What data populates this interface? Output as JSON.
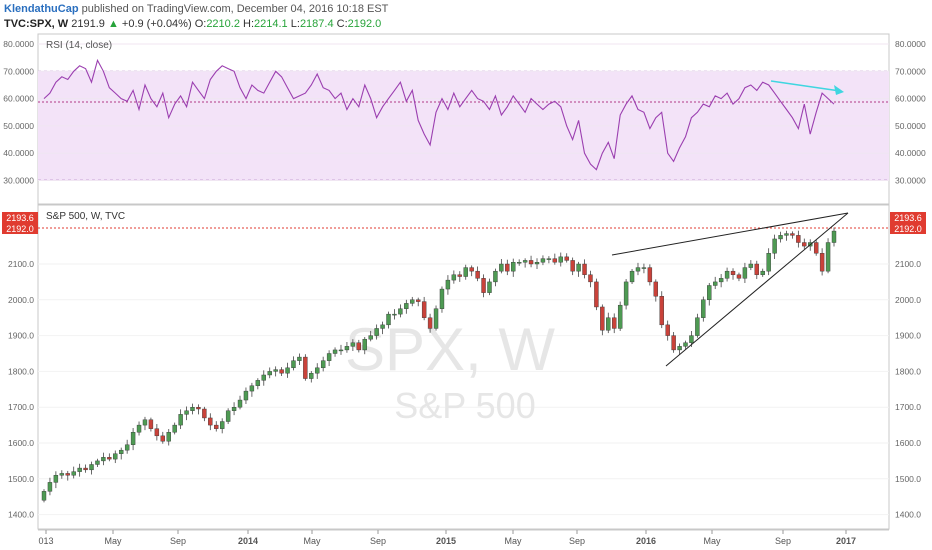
{
  "header": {
    "author": "KlendathuCap",
    "published": "published on TradingView.com, December 04, 2016 10:18 EST",
    "symbol": "TVC:SPX, W",
    "last": "2191.9",
    "change": "+0.9 (+0.04%)",
    "o_label": "O:",
    "o_value": "2210.2",
    "h_label": "H:",
    "h_value": "2214.1",
    "l_label": "L:",
    "l_value": "2187.4",
    "c_label": "C:",
    "c_value": "2192.0"
  },
  "rsi_panel": {
    "label": "RSI (14, close)",
    "ticks": [
      "80.0000",
      "70.0000",
      "60.0000",
      "50.0000",
      "40.0000",
      "30.0000"
    ],
    "tick_values": [
      80,
      70,
      60,
      50,
      40,
      30
    ]
  },
  "price_panel": {
    "label": "S&P 500, W, TVC",
    "ticks": [
      "2100.0",
      "2000.0",
      "1900.0",
      "1800.0",
      "1700.0",
      "1600.0",
      "1500.0",
      "1400.0"
    ],
    "tick_values": [
      2100,
      2000,
      1900,
      1800,
      1700,
      1600,
      1500,
      1400
    ],
    "badge_high": "2193.6",
    "badge_close": "2192.0",
    "watermark_main": "SPX, W",
    "watermark_sub": "S&P 500"
  },
  "x_axis": [
    "013",
    "May",
    "Sep",
    "2014",
    "May",
    "Sep",
    "2015",
    "May",
    "Sep",
    "2016",
    "May",
    "Sep",
    "2017"
  ],
  "colors": {
    "up": "#4e9a53",
    "down": "#c9423a",
    "rsi_line": "#9b3fb0",
    "rsi_band": "#f3e3f8",
    "arrow": "#3fd6e0",
    "badge": "#e03b30",
    "trendline": "#222222"
  },
  "chart_data": [
    {
      "type": "line",
      "title": "RSI (14, close)",
      "ylim": [
        25,
        82
      ],
      "x_range": [
        "2013-01",
        "2016-12"
      ],
      "bands": [
        30,
        70
      ],
      "current_level": 58,
      "series": [
        {
          "values": [
            60,
            62,
            66,
            68,
            67,
            70,
            72,
            71,
            66,
            74,
            70,
            64,
            62,
            60,
            59,
            63,
            56,
            65,
            60,
            57,
            62,
            53,
            58,
            61,
            57,
            66,
            63,
            60,
            67,
            70,
            72,
            71,
            70,
            64,
            60,
            65,
            63,
            62,
            66,
            70,
            68,
            64,
            60,
            61,
            62,
            65,
            69,
            64,
            63,
            60,
            62,
            56,
            60,
            57,
            65,
            60,
            53,
            57,
            60,
            63,
            66,
            59,
            63,
            52,
            47,
            43,
            55,
            60,
            56,
            62,
            57,
            60,
            63,
            60,
            59,
            56,
            61,
            54,
            57,
            61,
            58,
            55,
            60,
            58,
            56,
            58,
            59,
            57,
            50,
            45,
            52,
            40,
            36,
            34,
            40,
            44,
            38,
            54,
            58,
            61,
            56,
            55,
            49,
            53,
            55,
            40,
            37,
            42,
            46,
            53,
            55,
            58,
            57,
            61,
            60,
            62,
            58,
            60,
            64,
            65,
            63,
            66,
            65,
            62,
            59,
            56,
            53,
            49,
            58,
            47,
            55,
            62,
            60,
            58
          ]
        }
      ],
      "annotation": "declining arrow from RSI 65 (Oct 2016) to RSI 63 (Dec 2016)"
    },
    {
      "type": "candlestick",
      "title": "S&P 500, W, TVC",
      "ylim": [
        1380,
        2220
      ],
      "x_range": [
        "2013-01",
        "2016-12"
      ],
      "series": [
        {
          "close": [
            1465,
            1490,
            1510,
            1515,
            1510,
            1520,
            1530,
            1525,
            1540,
            1550,
            1560,
            1555,
            1570,
            1580,
            1595,
            1630,
            1650,
            1665,
            1640,
            1620,
            1605,
            1630,
            1650,
            1680,
            1690,
            1700,
            1695,
            1670,
            1650,
            1640,
            1660,
            1690,
            1700,
            1720,
            1745,
            1760,
            1775,
            1790,
            1800,
            1805,
            1795,
            1810,
            1830,
            1840,
            1780,
            1795,
            1810,
            1830,
            1850,
            1860,
            1860,
            1870,
            1880,
            1860,
            1890,
            1900,
            1920,
            1930,
            1960,
            1960,
            1975,
            1990,
            2000,
            1995,
            1950,
            1920,
            1975,
            2030,
            2055,
            2070,
            2065,
            2090,
            2080,
            2060,
            2020,
            2050,
            2080,
            2100,
            2080,
            2105,
            2105,
            2110,
            2100,
            2105,
            2115,
            2115,
            2105,
            2120,
            2110,
            2080,
            2100,
            2070,
            2050,
            1980,
            1915,
            1950,
            1920,
            1985,
            2050,
            2080,
            2090,
            2090,
            2050,
            2010,
            1930,
            1900,
            1860,
            1870,
            1880,
            1900,
            1950,
            2000,
            2040,
            2050,
            2060,
            2080,
            2070,
            2060,
            2090,
            2100,
            2070,
            2080,
            2130,
            2170,
            2180,
            2185,
            2180,
            2160,
            2150,
            2160,
            2130,
            2080,
            2160,
            2192
          ]
        }
      ],
      "trendlines": [
        {
          "from": [
            "2015-11",
            2110
          ],
          "to": [
            "2016-12",
            2220
          ]
        },
        {
          "from": [
            "2016-02",
            1810
          ],
          "to": [
            "2016-12",
            2220
          ]
        }
      ],
      "close_line": 2192.0
    }
  ]
}
